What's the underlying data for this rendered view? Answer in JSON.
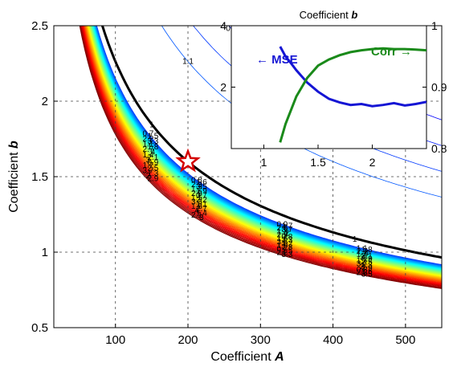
{
  "chart_data": [
    {
      "type": "contour",
      "xlabel": "Coefficient",
      "xlabel_var": "A",
      "ylabel": "Coefficient",
      "ylabel_var": "b",
      "xlim": [
        15,
        550
      ],
      "ylim": [
        0.5,
        2.5
      ],
      "xticks": [
        "100",
        "200",
        "300",
        "400",
        "500"
      ],
      "yticks": [
        "0.5",
        "1",
        "1.5",
        "2",
        "2.5"
      ],
      "grid": "dashed",
      "colormap": "jet",
      "optimal_contour_level": 1,
      "optimal_contour_color": "#000000",
      "marker": {
        "shape": "star",
        "A": 200,
        "b": 1.6,
        "color": "#d40000"
      },
      "contour_labels": [
        "0.7",
        "0.8",
        "0.9",
        "1.1",
        "1.2",
        "1.3",
        "1.4",
        "1.5",
        "1.6",
        "1.7",
        "1.8",
        "1.9",
        "2",
        "2.1",
        "2.2",
        "2.3",
        "2.5",
        "2.7",
        "2.8",
        "2.9",
        "3",
        "3.3",
        "3.5",
        "3.7",
        "4"
      ]
    },
    {
      "type": "line",
      "title": "Coefficient",
      "title_var": "b",
      "xlim": [
        0.7,
        2.5
      ],
      "xticks": [
        "1",
        "1.5",
        "2"
      ],
      "left_yticks": [
        "2",
        "4"
      ],
      "right_yticks": [
        "0.8",
        "0.9",
        "1"
      ],
      "series": [
        {
          "name": "← MSE",
          "axis": "left",
          "color": "#1515d4",
          "ylim": [
            0,
            4
          ],
          "x": [
            1.15,
            1.2,
            1.25,
            1.3,
            1.4,
            1.5,
            1.6,
            1.7,
            1.8,
            1.9,
            2.0,
            2.1,
            2.2,
            2.3,
            2.4,
            2.5
          ],
          "y": [
            3.32,
            3.0,
            2.78,
            2.55,
            2.15,
            1.85,
            1.62,
            1.5,
            1.42,
            1.45,
            1.38,
            1.42,
            1.48,
            1.4,
            1.45,
            1.52
          ]
        },
        {
          "name": "Corr →",
          "axis": "right",
          "color": "#1a8a1a",
          "ylim": [
            0.8,
            1.0
          ],
          "x": [
            1.15,
            1.2,
            1.3,
            1.4,
            1.5,
            1.6,
            1.7,
            1.8,
            1.9,
            2.0,
            2.1,
            2.2,
            2.3,
            2.4,
            2.5
          ],
          "y": [
            0.81,
            0.84,
            0.885,
            0.915,
            0.935,
            0.945,
            0.952,
            0.957,
            0.96,
            0.962,
            0.963,
            0.962,
            0.962,
            0.961,
            0.96
          ]
        }
      ]
    }
  ]
}
